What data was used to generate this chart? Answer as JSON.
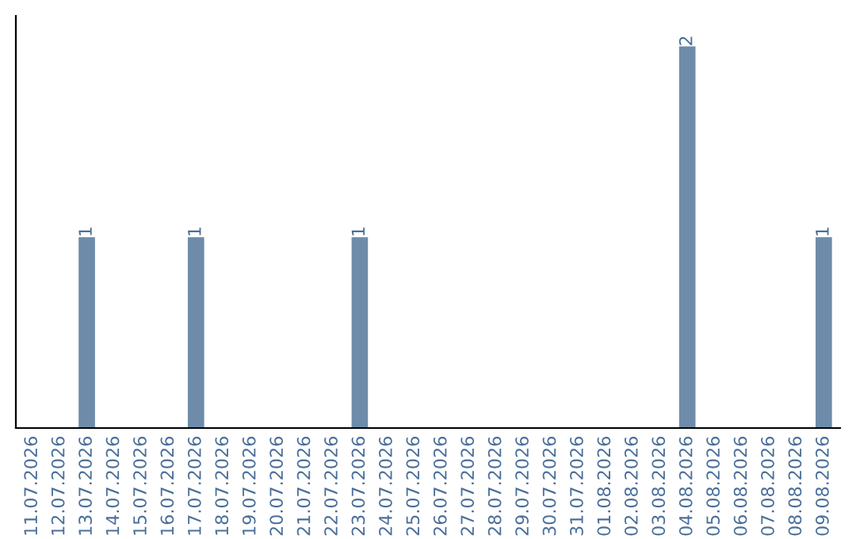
{
  "chart_data": {
    "type": "bar",
    "categories": [
      "11.07.2026",
      "12.07.2026",
      "13.07.2026",
      "14.07.2026",
      "15.07.2026",
      "16.07.2026",
      "17.07.2026",
      "18.07.2026",
      "19.07.2026",
      "20.07.2026",
      "21.07.2026",
      "22.07.2026",
      "23.07.2026",
      "24.07.2026",
      "25.07.2026",
      "26.07.2026",
      "27.07.2026",
      "28.07.2026",
      "29.07.2026",
      "30.07.2026",
      "31.07.2026",
      "01.08.2026",
      "02.08.2026",
      "03.08.2026",
      "04.08.2026",
      "05.08.2026",
      "06.08.2026",
      "07.08.2026",
      "08.08.2026",
      "09.08.2026"
    ],
    "values": [
      0,
      0,
      1,
      0,
      0,
      0,
      1,
      0,
      0,
      0,
      0,
      0,
      1,
      0,
      0,
      0,
      0,
      0,
      0,
      0,
      0,
      0,
      0,
      0,
      2,
      0,
      0,
      0,
      0,
      1
    ],
    "value_labels": [
      null,
      null,
      "1",
      null,
      null,
      null,
      "1",
      null,
      null,
      null,
      null,
      null,
      "1",
      null,
      null,
      null,
      null,
      null,
      null,
      null,
      null,
      null,
      null,
      null,
      "2",
      null,
      null,
      null,
      null,
      "1"
    ],
    "color": "#6e8caa",
    "tick_labels": "x",
    "grid": false,
    "legend": false
  }
}
